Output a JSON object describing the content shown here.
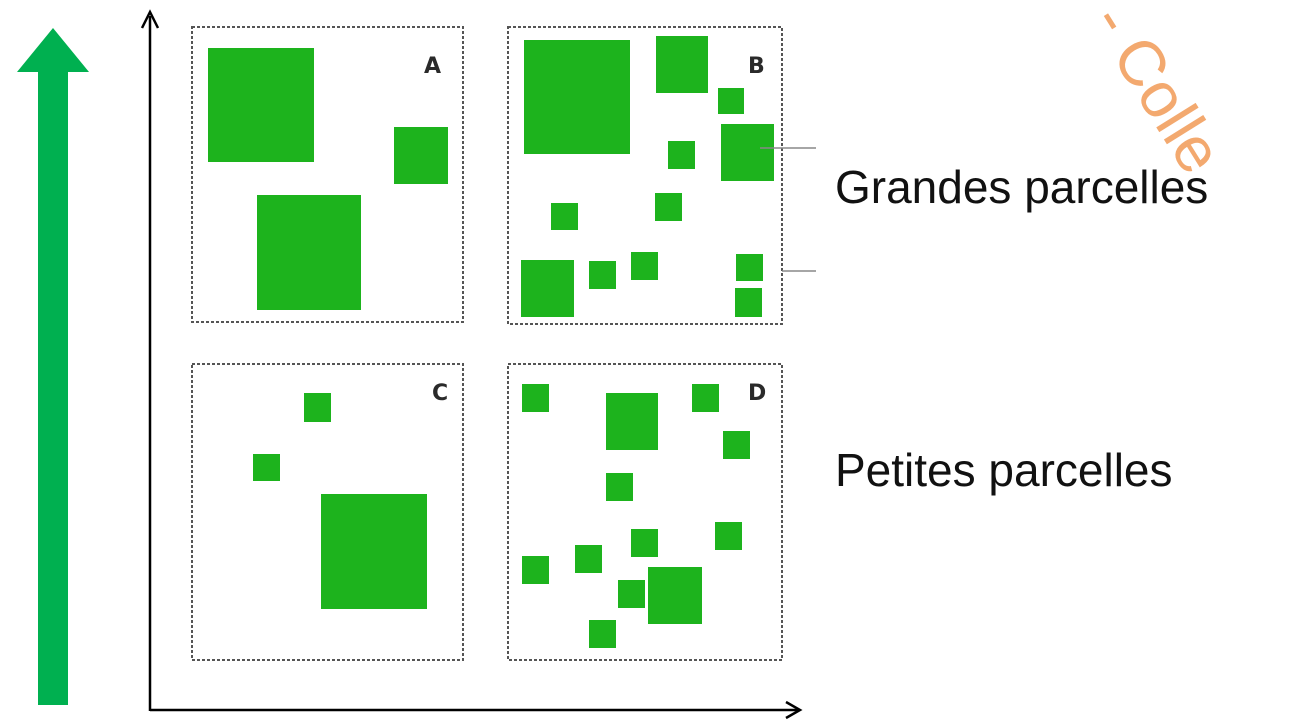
{
  "colors": {
    "green_arrow": "#00b050",
    "parcel_green": "#1db31d",
    "axis": "#000000",
    "panel_border": "#555555",
    "watermark": "#f2a060"
  },
  "panels": [
    {
      "id": "A",
      "letter": "A"
    },
    {
      "id": "B",
      "letter": "B"
    },
    {
      "id": "C",
      "letter": "C"
    },
    {
      "id": "D",
      "letter": "D"
    }
  ],
  "labels": {
    "large_parcels": "Grandes parcelles",
    "small_parcels": "Petites parcelles"
  },
  "watermark": {
    "text": "- Colle"
  }
}
